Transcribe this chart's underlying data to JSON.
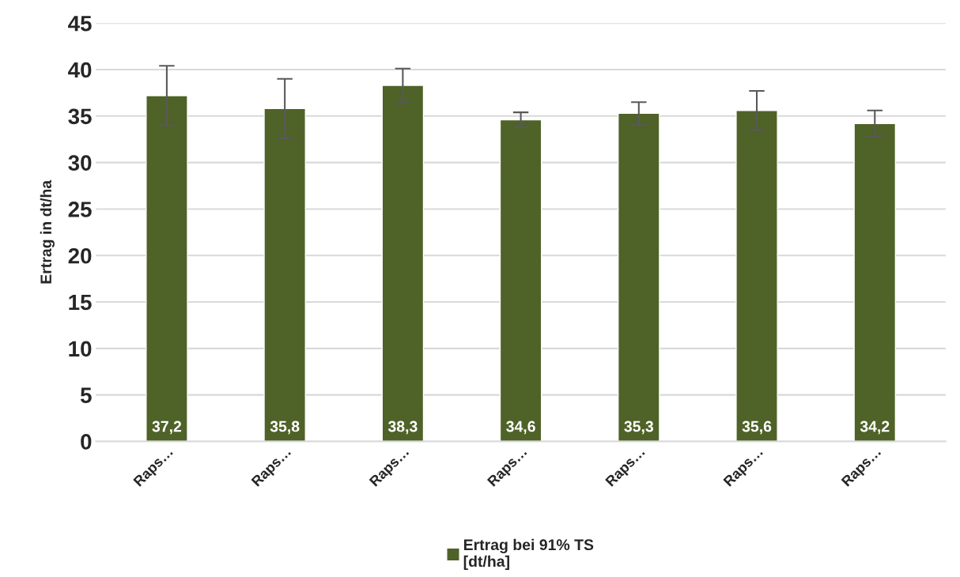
{
  "chart_data": {
    "type": "bar",
    "ylabel": "Ertrag in dt/ha",
    "categories": [
      "Raps…",
      "Raps…",
      "Raps…",
      "Raps…",
      "Raps…",
      "Raps…",
      "Raps…"
    ],
    "series": [
      {
        "name": "Ertrag bei 91% TS\n[dt/ha]",
        "color": "#4f6228",
        "values": [
          37.2,
          35.8,
          38.3,
          34.6,
          35.3,
          35.6,
          34.2
        ],
        "errors": [
          3.2,
          3.2,
          1.8,
          0.8,
          1.2,
          2.1,
          1.4
        ],
        "value_labels": [
          "37,2",
          "35,8",
          "38,3",
          "34,6",
          "35,3",
          "35,6",
          "34,2"
        ]
      }
    ],
    "ylim": [
      0,
      45
    ],
    "yticks": [
      0,
      5,
      10,
      15,
      20,
      25,
      30,
      35,
      40,
      45
    ],
    "grid": "y",
    "legend": "bottom"
  }
}
